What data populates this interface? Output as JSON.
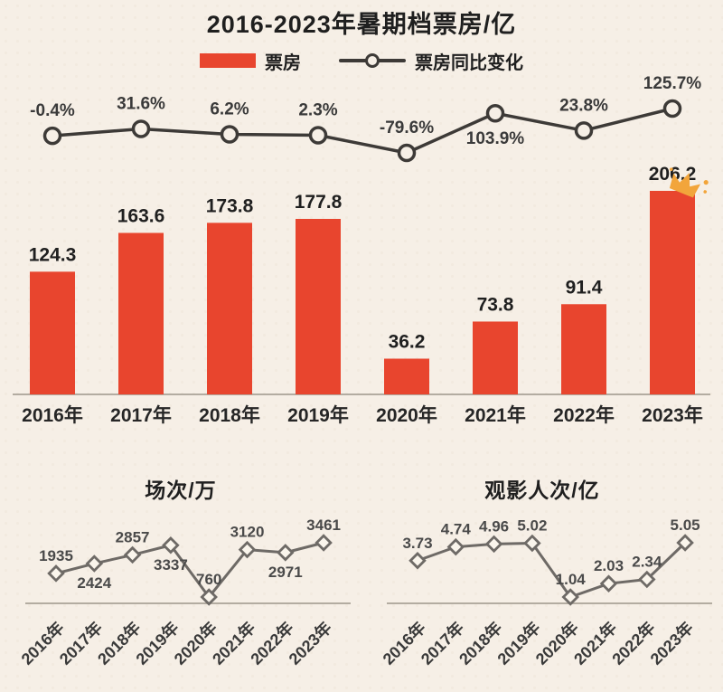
{
  "title": "2016-2023年暑期档票房/亿",
  "legend": {
    "bar_label": "票房",
    "line_label": "票房同比变化"
  },
  "colors": {
    "background": "#f6efe6",
    "bar": "#e8452e",
    "line": "#3d3a37",
    "small_line": "#6e6a66",
    "marker_fill": "#faf5ec",
    "axis": "#b3aca1",
    "text": "#1f1f1f",
    "crown": "#f2a53b"
  },
  "chart_data": [
    {
      "id": "main",
      "type": "bar+line",
      "title": "2016-2023年暑期档票房/亿",
      "categories": [
        "2016年",
        "2017年",
        "2018年",
        "2019年",
        "2020年",
        "2021年",
        "2022年",
        "2023年"
      ],
      "series": [
        {
          "name": "票房",
          "type": "bar",
          "unit": "亿",
          "values": [
            124.3,
            163.6,
            173.8,
            177.8,
            36.2,
            73.8,
            91.4,
            206.2
          ],
          "labels": [
            "124.3",
            "163.6",
            "173.8",
            "177.8",
            "36.2",
            "73.8",
            "91.4",
            "206.2"
          ]
        },
        {
          "name": "票房同比变化",
          "type": "line",
          "unit": "%",
          "values": [
            -0.4,
            31.6,
            6.2,
            2.3,
            -79.6,
            103.9,
            23.8,
            125.7
          ],
          "labels": [
            "-0.4%",
            "31.6%",
            "6.2%",
            "2.3%",
            "-79.6%",
            "103.9%",
            "23.8%",
            "125.7%"
          ],
          "label_pos": [
            "above",
            "above",
            "above",
            "above",
            "above",
            "below",
            "above",
            "above"
          ]
        }
      ],
      "annotation": {
        "type": "crown",
        "target_category": "2023年",
        "target_index": 7
      },
      "legend_position": "top",
      "grid": false
    },
    {
      "id": "sessions",
      "type": "line",
      "title": "场次/万",
      "categories": [
        "2016年",
        "2017年",
        "2018年",
        "2019年",
        "2020年",
        "2021年",
        "2022年",
        "2023年"
      ],
      "values": [
        1935,
        2424,
        2857,
        3337,
        760,
        3120,
        2971,
        3461
      ],
      "labels": [
        "1935",
        "2424",
        "2857",
        "3337",
        "760",
        "3120",
        "2971",
        "3461"
      ],
      "label_pos": [
        "above",
        "below",
        "above",
        "below",
        "above",
        "above",
        "below",
        "above"
      ],
      "grid": false
    },
    {
      "id": "admissions",
      "type": "line",
      "title": "观影人次/亿",
      "categories": [
        "2016年",
        "2017年",
        "2018年",
        "2019年",
        "2020年",
        "2021年",
        "2022年",
        "2023年"
      ],
      "values": [
        3.73,
        4.74,
        4.96,
        5.02,
        1.04,
        2.03,
        2.34,
        5.05
      ],
      "labels": [
        "3.73",
        "4.74",
        "4.96",
        "5.02",
        "1.04",
        "2.03",
        "2.34",
        "5.05"
      ],
      "label_pos": [
        "above",
        "above",
        "above",
        "above",
        "above",
        "above",
        "above",
        "above"
      ],
      "grid": false
    }
  ]
}
